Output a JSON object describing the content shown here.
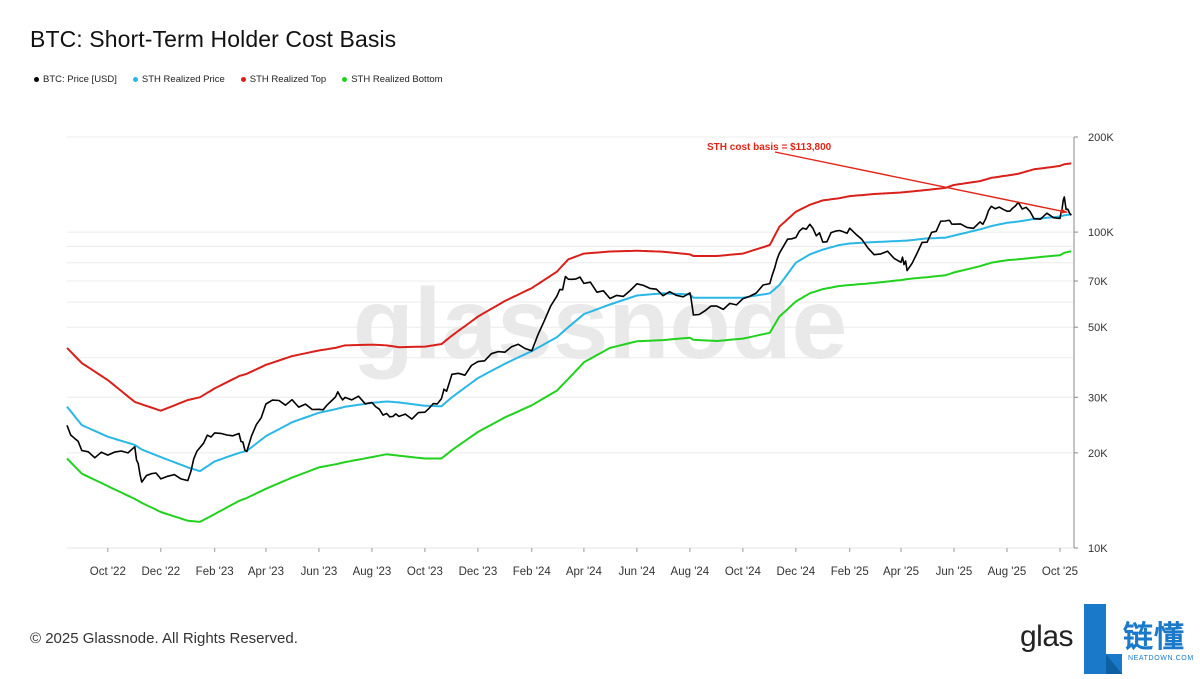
{
  "title": "BTC: Short-Term Holder Cost Basis",
  "footer": "© 2025 Glassnode. All Rights Reserved.",
  "watermark": "glassnode",
  "logo_text": "glas",
  "brand": {
    "cn": "链懂",
    "en": "NEATDOWN.COM",
    "color": "#1b79c9"
  },
  "legend": [
    {
      "label": "BTC: Price [USD]",
      "color": "#000000"
    },
    {
      "label": "STH Realized Price",
      "color": "#2bb7e6"
    },
    {
      "label": "STH Realized Top",
      "color": "#d9201a"
    },
    {
      "label": "STH Realized Bottom",
      "color": "#22d11e"
    }
  ],
  "chart_data": {
    "type": "line",
    "title": "BTC: Short-Term Holder Cost Basis",
    "y_scale": "log",
    "ylim": [
      10000,
      200000
    ],
    "y_ticks": [
      {
        "value": 10000,
        "label": "10K"
      },
      {
        "value": 20000,
        "label": "20K"
      },
      {
        "value": 30000,
        "label": "30K"
      },
      {
        "value": 50000,
        "label": "50K"
      },
      {
        "value": 70000,
        "label": "70K"
      },
      {
        "value": 100000,
        "label": "100K"
      },
      {
        "value": 200000,
        "label": "200K"
      }
    ],
    "x_ticks": [
      "Oct '22",
      "Dec '22",
      "Feb '23",
      "Apr '23",
      "Jun '23",
      "Aug '23",
      "Oct '23",
      "Dec '23",
      "Feb '24",
      "Apr '24",
      "Jun '24",
      "Aug '24",
      "Oct '24",
      "Dec '24",
      "Feb '25",
      "Apr '25",
      "Jun '25",
      "Aug '25",
      "Oct '25"
    ],
    "x": [
      "2022-08-15",
      "2022-09-01",
      "2022-10-01",
      "2022-11-01",
      "2022-11-09",
      "2022-12-01",
      "2023-01-01",
      "2023-01-15",
      "2023-02-01",
      "2023-03-01",
      "2023-03-10",
      "2023-04-01",
      "2023-05-01",
      "2023-06-01",
      "2023-06-20",
      "2023-07-01",
      "2023-08-01",
      "2023-08-18",
      "2023-09-01",
      "2023-10-01",
      "2023-10-20",
      "2023-11-01",
      "2023-12-01",
      "2024-01-01",
      "2024-02-01",
      "2024-03-01",
      "2024-03-14",
      "2024-04-01",
      "2024-05-01",
      "2024-06-01",
      "2024-07-01",
      "2024-08-01",
      "2024-08-05",
      "2024-09-01",
      "2024-10-01",
      "2024-11-01",
      "2024-11-12",
      "2024-12-01",
      "2024-12-17",
      "2025-01-01",
      "2025-01-20",
      "2025-02-01",
      "2025-03-01",
      "2025-04-01",
      "2025-04-08",
      "2025-05-01",
      "2025-05-22",
      "2025-06-01",
      "2025-07-01",
      "2025-07-14",
      "2025-08-01",
      "2025-08-14",
      "2025-09-01",
      "2025-10-01",
      "2025-10-06",
      "2025-10-14"
    ],
    "series": [
      {
        "name": "BTC: Price [USD]",
        "color": "#000000",
        "values": [
          24200,
          20100,
          19400,
          20500,
          16500,
          17000,
          16600,
          20900,
          23700,
          22300,
          20300,
          28500,
          29300,
          27100,
          30200,
          30500,
          29300,
          26100,
          25900,
          27000,
          29700,
          34500,
          38500,
          42300,
          43000,
          62500,
          73000,
          69700,
          62000,
          67600,
          62500,
          65300,
          54000,
          57600,
          60800,
          69400,
          88000,
          96000,
          106000,
          94000,
          104000,
          101000,
          86500,
          82500,
          77000,
          94500,
          110000,
          104500,
          105700,
          121000,
          115800,
          123500,
          109500,
          114000,
          125000,
          113000
        ]
      },
      {
        "name": "STH Realized Price",
        "color": "#2bb7e6",
        "values": [
          28000,
          24500,
          22500,
          21200,
          20500,
          19400,
          18000,
          17500,
          18800,
          20000,
          20300,
          22600,
          25000,
          26800,
          27500,
          28000,
          28800,
          29100,
          28900,
          28200,
          28100,
          30000,
          34500,
          38300,
          42000,
          46500,
          50000,
          55000,
          59000,
          63000,
          64000,
          63500,
          62000,
          62000,
          62000,
          64000,
          68000,
          80000,
          85000,
          88000,
          91000,
          92000,
          93000,
          93800,
          94000,
          95500,
          96000,
          97500,
          102000,
          104500,
          107000,
          108000,
          110000,
          112000,
          113000,
          113800
        ]
      },
      {
        "name": "STH Realized Top",
        "color": "#d9201a",
        "values": [
          43000,
          38500,
          34000,
          29000,
          28500,
          27200,
          29400,
          30000,
          32000,
          35000,
          35600,
          38000,
          40500,
          42200,
          43000,
          43800,
          44000,
          43800,
          43200,
          43400,
          44200,
          47000,
          54000,
          60500,
          66500,
          75000,
          82000,
          85500,
          86800,
          87300,
          86700,
          85000,
          84000,
          84000,
          85500,
          91000,
          104000,
          116000,
          122000,
          126000,
          128000,
          130000,
          132000,
          133500,
          134000,
          136000,
          138000,
          141000,
          145000,
          148500,
          151000,
          153000,
          158000,
          162000,
          164000,
          165000
        ]
      },
      {
        "name": "STH Realized Bottom",
        "color": "#22d11e",
        "values": [
          19200,
          17200,
          15700,
          14300,
          13900,
          13000,
          12200,
          12100,
          12800,
          14100,
          14400,
          15400,
          16700,
          18000,
          18400,
          18700,
          19400,
          19800,
          19600,
          19200,
          19200,
          20400,
          23300,
          25900,
          28300,
          31500,
          34300,
          38700,
          43000,
          45100,
          45500,
          46300,
          45600,
          45200,
          46000,
          48000,
          54000,
          60300,
          64000,
          66000,
          67500,
          68000,
          69000,
          70500,
          71000,
          72000,
          73000,
          74500,
          78000,
          80000,
          81500,
          82000,
          83000,
          84500,
          86000,
          87000
        ]
      }
    ],
    "annotation": {
      "text": "STH cost basis = $113,800",
      "color": "#e02418"
    },
    "grid": true,
    "legend_position": "top-left"
  }
}
